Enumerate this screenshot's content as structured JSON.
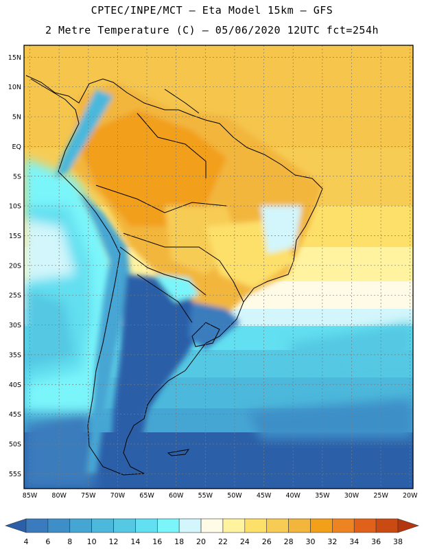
{
  "header": {
    "line1": "CPTEC/INPE/MCT –  Eta Model 15km – GFS",
    "line2": "2 Metre Temperature (C) – 05/06/2020 12UTC fct=254h"
  },
  "map": {
    "lat_labels": [
      "15N",
      "10N",
      "5N",
      "EQ",
      "5S",
      "10S",
      "15S",
      "20S",
      "25S",
      "30S",
      "35S",
      "40S",
      "45S",
      "50S",
      "55S"
    ],
    "lon_labels": [
      "85W",
      "80W",
      "75W",
      "70W",
      "65W",
      "60W",
      "55W",
      "50W",
      "45W",
      "40W",
      "35W",
      "30W",
      "25W",
      "20W"
    ],
    "lat_range": [
      17,
      -57.5
    ],
    "lon_range": [
      -86,
      -19.5
    ]
  },
  "legend": {
    "values": [
      "4",
      "6",
      "8",
      "10",
      "12",
      "14",
      "16",
      "18",
      "20",
      "22",
      "24",
      "26",
      "28",
      "30",
      "32",
      "34",
      "36",
      "38"
    ],
    "colors": [
      "#2b5fa8",
      "#3a7bbd",
      "#3e8fc8",
      "#46a6d3",
      "#4cb8db",
      "#55c8e3",
      "#62dff0",
      "#7af5fa",
      "#d2f6fb",
      "#fffbe6",
      "#fff3a0",
      "#fde06a",
      "#f7cc55",
      "#f2b63c",
      "#f29f1a",
      "#ee8421",
      "#e0621a",
      "#c94a12",
      "#b3360e"
    ]
  }
}
